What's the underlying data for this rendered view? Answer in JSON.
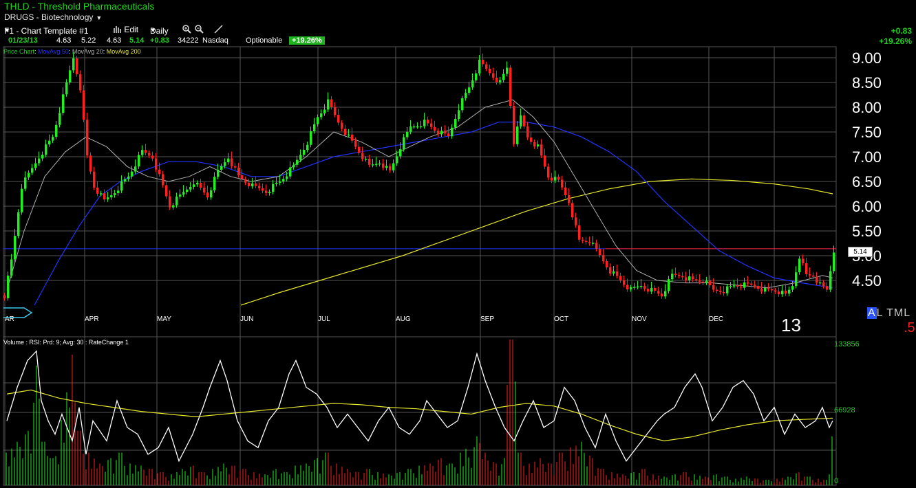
{
  "header": {
    "title": "THLD - Threshold Pharmaceuticals",
    "sector": "DRUGS - Biotechnology",
    "sector_dropdown": "▼"
  },
  "toolbar": {
    "template": "F1 - Chart Template #1",
    "template_dropdown": "▼",
    "edit_label": "Edit",
    "interval": "Daily",
    "interval_dropdown": "▼"
  },
  "quote": {
    "date": "01/23/13",
    "open": "4.63",
    "high": "5.22",
    "low": "4.63",
    "close": "5.14",
    "change": "+0.83",
    "volume": "34222",
    "exchange": "Nasdaq",
    "optionable": "Optionable",
    "change_pct": "+19.26%"
  },
  "right_change": {
    "abs": "+0.83",
    "pct": "+19.26%"
  },
  "studies": {
    "price_chart": "Price Chart",
    "ma50": "MovAvg 50",
    "ma20": "MovAvg 20",
    "ma200": "MovAvg 200",
    "separator": ": "
  },
  "volume_study": "Volume : RSI: Prd: 9; Avg: 30 : RateChange 1",
  "price_axis": {
    "labels": [
      "9.00",
      "8.50",
      "8.00",
      "7.50",
      "7.00",
      "6.50",
      "6.00",
      "5.50",
      "5.00",
      "4.50"
    ]
  },
  "months": [
    "AR",
    "APR",
    "MAY",
    "JUN",
    "JUL",
    "AUG",
    "SEP",
    "OCT",
    "NOV",
    "DEC"
  ],
  "volume_axis": {
    "top": "133856",
    "mid": "66928",
    "bottom": "0"
  },
  "last_price_box": "5.14",
  "year_label": "13",
  "altml": {
    "a": "A",
    "rest": "L TML"
  },
  "corner_value": ".5",
  "colors": {
    "up": "#22ee22",
    "down": "#ff2020",
    "ma50": "#2233ff",
    "ma20": "#b0b0b0",
    "ma200": "#e6e62a",
    "grid": "#555555",
    "brand": "#1fd11f"
  },
  "chart_data": {
    "type": "candlestick",
    "y_range": [
      4.0,
      9.3
    ],
    "current_price": 5.14,
    "price_polyline": [
      [
        0,
        4.2
      ],
      [
        10,
        4.9
      ],
      [
        25,
        6.4
      ],
      [
        50,
        7.0
      ],
      [
        70,
        7.4
      ],
      [
        85,
        8.2
      ],
      [
        100,
        9.0
      ],
      [
        110,
        8.4
      ],
      [
        120,
        7.0
      ],
      [
        130,
        6.4
      ],
      [
        145,
        6.1
      ],
      [
        160,
        6.3
      ],
      [
        180,
        6.6
      ],
      [
        200,
        7.1
      ],
      [
        215,
        7.0
      ],
      [
        225,
        6.6
      ],
      [
        240,
        6.0
      ],
      [
        255,
        6.2
      ],
      [
        275,
        6.5
      ],
      [
        295,
        6.2
      ],
      [
        310,
        6.7
      ],
      [
        325,
        7.0
      ],
      [
        340,
        6.6
      ],
      [
        360,
        6.4
      ],
      [
        380,
        6.3
      ],
      [
        400,
        6.5
      ],
      [
        420,
        6.8
      ],
      [
        440,
        7.3
      ],
      [
        455,
        7.8
      ],
      [
        470,
        8.1
      ],
      [
        485,
        7.7
      ],
      [
        500,
        7.4
      ],
      [
        515,
        7.1
      ],
      [
        530,
        6.8
      ],
      [
        545,
        6.9
      ],
      [
        560,
        6.7
      ],
      [
        575,
        7.2
      ],
      [
        590,
        7.6
      ],
      [
        610,
        7.7
      ],
      [
        630,
        7.5
      ],
      [
        645,
        7.4
      ],
      [
        660,
        8.0
      ],
      [
        675,
        8.4
      ],
      [
        690,
        8.9
      ],
      [
        705,
        8.7
      ],
      [
        720,
        8.5
      ],
      [
        730,
        8.8
      ],
      [
        740,
        7.3
      ],
      [
        750,
        7.8
      ],
      [
        760,
        7.4
      ],
      [
        775,
        7.2
      ],
      [
        790,
        6.6
      ],
      [
        805,
        6.5
      ],
      [
        820,
        6.1
      ],
      [
        835,
        5.3
      ],
      [
        850,
        5.3
      ],
      [
        865,
        5.0
      ],
      [
        880,
        4.7
      ],
      [
        895,
        4.5
      ],
      [
        910,
        4.3
      ],
      [
        925,
        4.4
      ],
      [
        940,
        4.3
      ],
      [
        955,
        4.2
      ],
      [
        970,
        4.6
      ],
      [
        985,
        4.6
      ],
      [
        1000,
        4.5
      ],
      [
        1015,
        4.5
      ],
      [
        1030,
        4.3
      ],
      [
        1045,
        4.3
      ],
      [
        1060,
        4.4
      ],
      [
        1075,
        4.4
      ],
      [
        1090,
        4.4
      ],
      [
        1105,
        4.3
      ],
      [
        1120,
        4.3
      ],
      [
        1135,
        4.2
      ],
      [
        1145,
        4.4
      ],
      [
        1155,
        5.0
      ],
      [
        1165,
        4.6
      ],
      [
        1175,
        4.6
      ],
      [
        1185,
        4.4
      ],
      [
        1195,
        4.3
      ],
      [
        1205,
        5.1
      ]
    ],
    "ma20": [
      [
        5,
        4.3
      ],
      [
        30,
        5.5
      ],
      [
        60,
        6.6
      ],
      [
        90,
        7.1
      ],
      [
        120,
        7.4
      ],
      [
        150,
        7.2
      ],
      [
        180,
        6.8
      ],
      [
        210,
        6.6
      ],
      [
        240,
        6.5
      ],
      [
        270,
        6.6
      ],
      [
        300,
        6.8
      ],
      [
        330,
        6.6
      ],
      [
        360,
        6.5
      ],
      [
        400,
        6.6
      ],
      [
        440,
        7.0
      ],
      [
        480,
        7.5
      ],
      [
        520,
        7.3
      ],
      [
        560,
        7.0
      ],
      [
        590,
        7.2
      ],
      [
        620,
        7.4
      ],
      [
        660,
        7.6
      ],
      [
        700,
        8.0
      ],
      [
        740,
        8.15
      ],
      [
        770,
        7.8
      ],
      [
        800,
        7.3
      ],
      [
        830,
        6.6
      ],
      [
        860,
        5.9
      ],
      [
        890,
        5.2
      ],
      [
        920,
        4.7
      ],
      [
        950,
        4.5
      ],
      [
        990,
        4.45
      ],
      [
        1030,
        4.45
      ],
      [
        1070,
        4.4
      ],
      [
        1110,
        4.35
      ],
      [
        1150,
        4.45
      ],
      [
        1190,
        4.6
      ],
      [
        1205,
        4.55
      ]
    ],
    "ma50": [
      [
        45,
        4.0
      ],
      [
        80,
        4.9
      ],
      [
        110,
        5.6
      ],
      [
        140,
        6.2
      ],
      [
        170,
        6.5
      ],
      [
        200,
        6.7
      ],
      [
        240,
        6.9
      ],
      [
        280,
        6.9
      ],
      [
        320,
        6.8
      ],
      [
        360,
        6.6
      ],
      [
        400,
        6.6
      ],
      [
        440,
        6.8
      ],
      [
        480,
        7.0
      ],
      [
        520,
        7.1
      ],
      [
        560,
        7.2
      ],
      [
        600,
        7.3
      ],
      [
        640,
        7.4
      ],
      [
        680,
        7.5
      ],
      [
        720,
        7.7
      ],
      [
        760,
        7.7
      ],
      [
        800,
        7.6
      ],
      [
        840,
        7.4
      ],
      [
        880,
        7.1
      ],
      [
        920,
        6.7
      ],
      [
        960,
        6.1
      ],
      [
        1000,
        5.6
      ],
      [
        1040,
        5.1
      ],
      [
        1080,
        4.8
      ],
      [
        1120,
        4.55
      ],
      [
        1160,
        4.45
      ],
      [
        1205,
        4.35
      ]
    ],
    "ma200": [
      [
        345,
        4.0
      ],
      [
        400,
        4.25
      ],
      [
        460,
        4.5
      ],
      [
        520,
        4.75
      ],
      [
        580,
        5.0
      ],
      [
        640,
        5.3
      ],
      [
        700,
        5.6
      ],
      [
        760,
        5.9
      ],
      [
        820,
        6.15
      ],
      [
        880,
        6.35
      ],
      [
        940,
        6.5
      ],
      [
        1000,
        6.55
      ],
      [
        1060,
        6.52
      ],
      [
        1120,
        6.45
      ],
      [
        1170,
        6.35
      ],
      [
        1205,
        6.25
      ]
    ],
    "rsi_range": [
      0,
      100
    ],
    "rsi": [
      [
        5,
        45
      ],
      [
        20,
        70
      ],
      [
        35,
        90
      ],
      [
        48,
        97
      ],
      [
        55,
        60
      ],
      [
        65,
        45
      ],
      [
        75,
        35
      ],
      [
        85,
        50
      ],
      [
        100,
        30
      ],
      [
        110,
        55
      ],
      [
        120,
        20
      ],
      [
        130,
        45
      ],
      [
        150,
        30
      ],
      [
        165,
        60
      ],
      [
        180,
        40
      ],
      [
        195,
        35
      ],
      [
        210,
        20
      ],
      [
        225,
        25
      ],
      [
        240,
        40
      ],
      [
        255,
        15
      ],
      [
        265,
        25
      ],
      [
        275,
        35
      ],
      [
        290,
        55
      ],
      [
        300,
        70
      ],
      [
        315,
        90
      ],
      [
        325,
        75
      ],
      [
        340,
        45
      ],
      [
        355,
        30
      ],
      [
        370,
        25
      ],
      [
        385,
        45
      ],
      [
        400,
        55
      ],
      [
        415,
        80
      ],
      [
        425,
        90
      ],
      [
        440,
        70
      ],
      [
        455,
        65
      ],
      [
        470,
        55
      ],
      [
        485,
        40
      ],
      [
        500,
        50
      ],
      [
        515,
        40
      ],
      [
        530,
        30
      ],
      [
        545,
        45
      ],
      [
        560,
        55
      ],
      [
        575,
        40
      ],
      [
        590,
        35
      ],
      [
        605,
        45
      ],
      [
        615,
        60
      ],
      [
        630,
        50
      ],
      [
        645,
        40
      ],
      [
        660,
        45
      ],
      [
        675,
        70
      ],
      [
        688,
        95
      ],
      [
        700,
        75
      ],
      [
        715,
        55
      ],
      [
        728,
        40
      ],
      [
        742,
        30
      ],
      [
        755,
        45
      ],
      [
        770,
        60
      ],
      [
        785,
        40
      ],
      [
        800,
        45
      ],
      [
        815,
        70
      ],
      [
        830,
        60
      ],
      [
        845,
        40
      ],
      [
        860,
        25
      ],
      [
        875,
        50
      ],
      [
        890,
        30
      ],
      [
        905,
        15
      ],
      [
        920,
        25
      ],
      [
        935,
        35
      ],
      [
        950,
        45
      ],
      [
        960,
        50
      ],
      [
        975,
        55
      ],
      [
        990,
        70
      ],
      [
        1005,
        80
      ],
      [
        1015,
        70
      ],
      [
        1030,
        45
      ],
      [
        1045,
        55
      ],
      [
        1060,
        70
      ],
      [
        1075,
        75
      ],
      [
        1090,
        65
      ],
      [
        1105,
        45
      ],
      [
        1120,
        55
      ],
      [
        1135,
        35
      ],
      [
        1150,
        50
      ],
      [
        1165,
        40
      ],
      [
        1180,
        45
      ],
      [
        1190,
        55
      ],
      [
        1200,
        40
      ],
      [
        1205,
        45
      ]
    ],
    "rsi_avg": [
      [
        5,
        65
      ],
      [
        40,
        68
      ],
      [
        80,
        62
      ],
      [
        120,
        58
      ],
      [
        160,
        55
      ],
      [
        200,
        52
      ],
      [
        240,
        50
      ],
      [
        280,
        48
      ],
      [
        320,
        50
      ],
      [
        360,
        52
      ],
      [
        400,
        54
      ],
      [
        440,
        56
      ],
      [
        480,
        58
      ],
      [
        520,
        57
      ],
      [
        560,
        55
      ],
      [
        600,
        54
      ],
      [
        640,
        52
      ],
      [
        680,
        50
      ],
      [
        720,
        55
      ],
      [
        760,
        58
      ],
      [
        800,
        56
      ],
      [
        840,
        50
      ],
      [
        880,
        42
      ],
      [
        920,
        35
      ],
      [
        960,
        30
      ],
      [
        1000,
        33
      ],
      [
        1040,
        38
      ],
      [
        1080,
        42
      ],
      [
        1120,
        45
      ],
      [
        1160,
        46
      ],
      [
        1205,
        47
      ]
    ],
    "volume_range": [
      0,
      133856
    ],
    "volume": [
      [
        5,
        30000
      ],
      [
        20,
        40000
      ],
      [
        35,
        50000
      ],
      [
        48,
        110000
      ],
      [
        58,
        40000
      ],
      [
        70,
        25000
      ],
      [
        85,
        60000
      ],
      [
        100,
        120000
      ],
      [
        110,
        50000
      ],
      [
        125,
        30000
      ],
      [
        140,
        20000
      ],
      [
        155,
        25000
      ],
      [
        170,
        30000
      ],
      [
        185,
        20000
      ],
      [
        200,
        18000
      ],
      [
        215,
        15000
      ],
      [
        230,
        12000
      ],
      [
        245,
        10000
      ],
      [
        260,
        15000
      ],
      [
        275,
        18000
      ],
      [
        290,
        12000
      ],
      [
        305,
        15000
      ],
      [
        320,
        20000
      ],
      [
        335,
        18000
      ],
      [
        350,
        15000
      ],
      [
        365,
        12000
      ],
      [
        380,
        10000
      ],
      [
        395,
        15000
      ],
      [
        410,
        12000
      ],
      [
        425,
        18000
      ],
      [
        440,
        20000
      ],
      [
        455,
        25000
      ],
      [
        470,
        30000
      ],
      [
        485,
        20000
      ],
      [
        500,
        15000
      ],
      [
        515,
        12000
      ],
      [
        530,
        15000
      ],
      [
        545,
        12000
      ],
      [
        560,
        10000
      ],
      [
        575,
        12000
      ],
      [
        590,
        15000
      ],
      [
        605,
        18000
      ],
      [
        620,
        20000
      ],
      [
        635,
        25000
      ],
      [
        650,
        20000
      ],
      [
        665,
        30000
      ],
      [
        688,
        45000
      ],
      [
        700,
        30000
      ],
      [
        715,
        20000
      ],
      [
        728,
        25000
      ],
      [
        738,
        200000
      ],
      [
        750,
        30000
      ],
      [
        765,
        20000
      ],
      [
        780,
        25000
      ],
      [
        795,
        20000
      ],
      [
        810,
        30000
      ],
      [
        825,
        35000
      ],
      [
        840,
        40000
      ],
      [
        855,
        25000
      ],
      [
        870,
        15000
      ],
      [
        885,
        12000
      ],
      [
        900,
        10000
      ],
      [
        915,
        12000
      ],
      [
        930,
        15000
      ],
      [
        945,
        10000
      ],
      [
        960,
        8000
      ],
      [
        975,
        10000
      ],
      [
        990,
        12000
      ],
      [
        1005,
        10000
      ],
      [
        1020,
        8000
      ],
      [
        1035,
        10000
      ],
      [
        1050,
        8000
      ],
      [
        1065,
        6000
      ],
      [
        1080,
        8000
      ],
      [
        1095,
        6000
      ],
      [
        1110,
        5000
      ],
      [
        1125,
        6000
      ],
      [
        1140,
        8000
      ],
      [
        1155,
        12000
      ],
      [
        1170,
        8000
      ],
      [
        1185,
        6000
      ],
      [
        1195,
        5000
      ],
      [
        1205,
        45000
      ]
    ]
  }
}
